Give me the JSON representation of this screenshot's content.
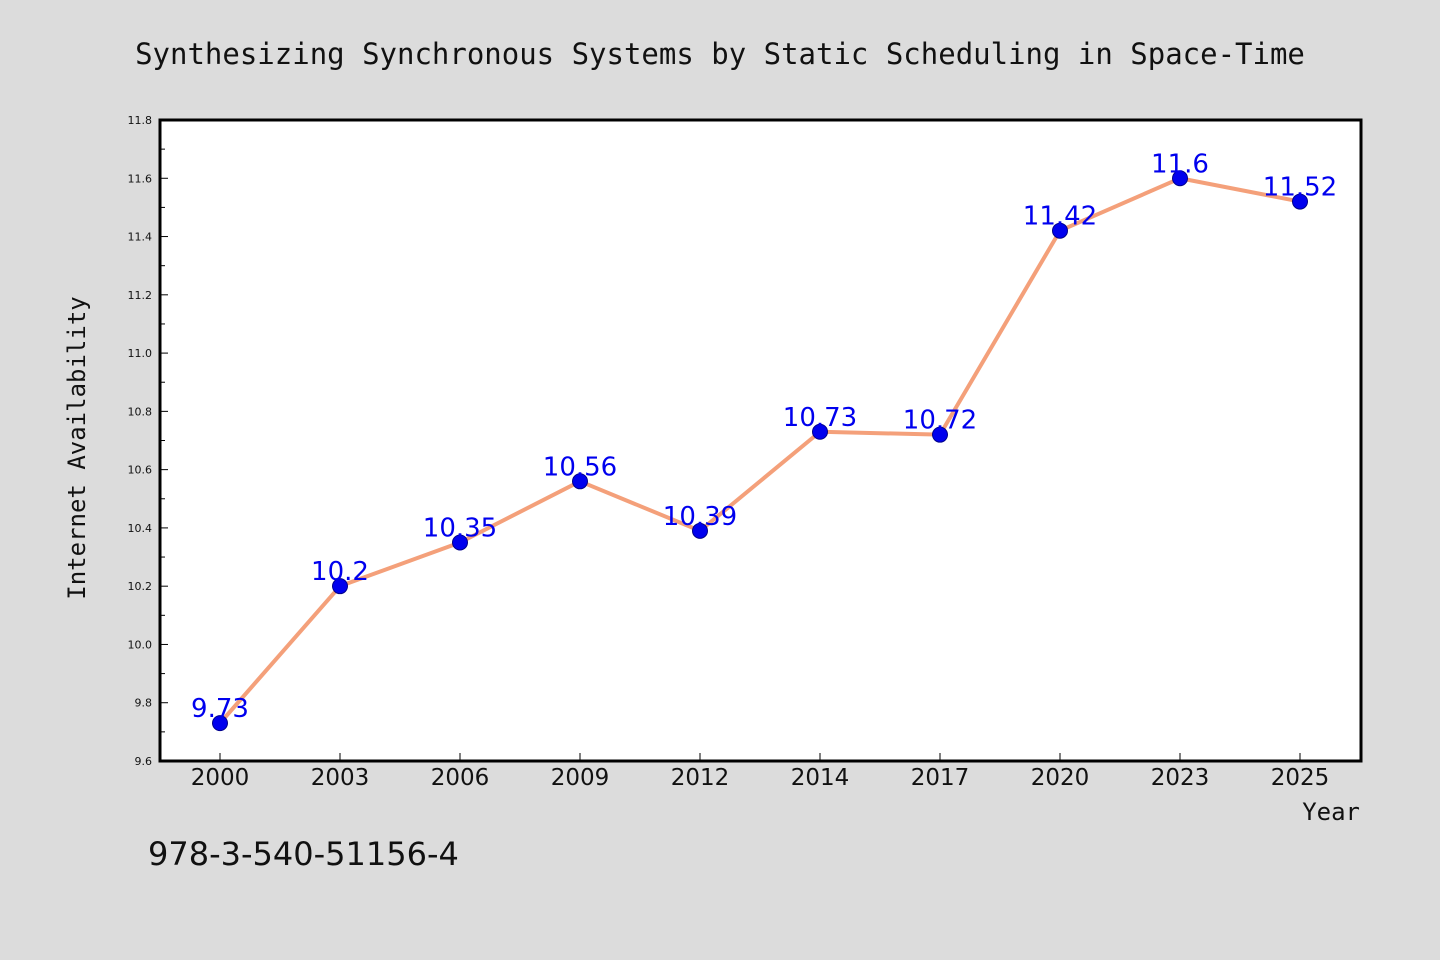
{
  "chart_data": {
    "type": "line",
    "title": "Synthesizing Synchronous Systems by Static Scheduling in Space-Time",
    "xlabel": "Year",
    "ylabel": "Internet Availability",
    "categories": [
      "2000",
      "2003",
      "2006",
      "2009",
      "2012",
      "2014",
      "2017",
      "2020",
      "2023",
      "2025"
    ],
    "series": [
      {
        "values": [
          9.73,
          10.2,
          10.35,
          10.56,
          10.39,
          10.73,
          10.72,
          11.42,
          11.6,
          11.52
        ]
      }
    ],
    "data_labels": [
      "9.73",
      "10.2",
      "10.35",
      "10.56",
      "10.39",
      "10.73",
      "10.72",
      "11.42",
      "11.6",
      "11.52"
    ],
    "ylim": [
      9.6,
      11.8
    ],
    "yticks": [
      "9.6",
      "9.8",
      "10.0",
      "10.2",
      "10.4",
      "10.6",
      "10.8",
      "11.0",
      "11.2",
      "11.4",
      "11.6",
      "11.8"
    ],
    "grid": false,
    "legend": "none",
    "colors": {
      "line": "#f4a07a",
      "marker_fill": "#0000ee",
      "marker_edge": "#00008b",
      "data_label": "#0000ee",
      "background": "#dcdcdc",
      "plot_background": "#ffffff"
    }
  },
  "footer": {
    "isbn": "978-3-540-51156-4"
  }
}
